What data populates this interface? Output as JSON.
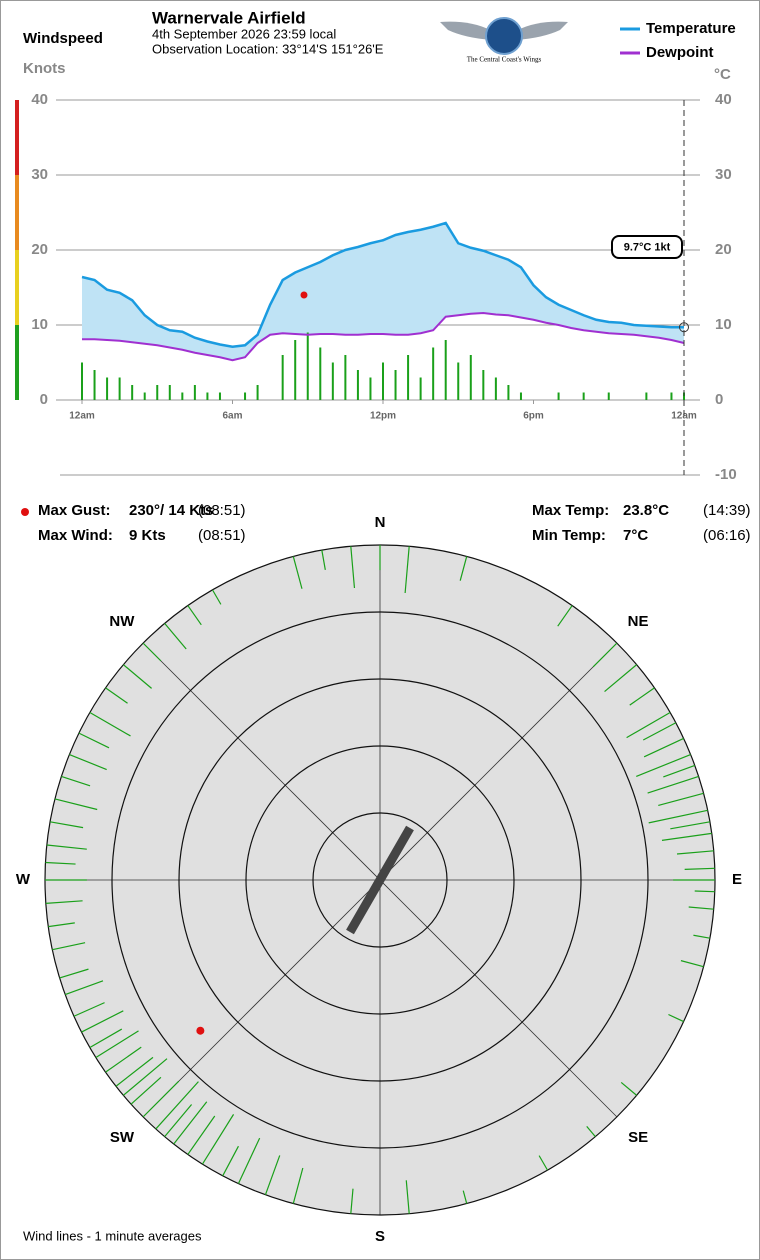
{
  "header": {
    "title": "Warnervale Airfield",
    "date": "4th September 2026  23:59 local",
    "location": "Observation Location: 33°14'S 151°26'E",
    "logo_caption": "The Central Coast's Wings"
  },
  "stats": [
    {
      "label": "Max Gust:",
      "value": "230°/ 14 Kts",
      "time": "(08:51)"
    },
    {
      "label": "Max Wind:",
      "value": "9 Kts",
      "time": "(08:51)"
    },
    {
      "label": "Max Temp:",
      "value": "23.8°C",
      "time": "(14:39)"
    },
    {
      "label": "Min Temp:",
      "value": "7°C",
      "time": "(06:16)"
    }
  ],
  "chart_data": [
    {
      "type": "line",
      "y_label": "Windspeed",
      "y_unit": "Knots",
      "y2_unit": "°C",
      "x": [
        0,
        0.5,
        1,
        1.5,
        2,
        2.5,
        3,
        3.5,
        4,
        4.5,
        5,
        5.5,
        6,
        6.5,
        7,
        7.5,
        8,
        8.5,
        9,
        9.5,
        10,
        10.5,
        11,
        11.5,
        12,
        12.5,
        13,
        13.5,
        14,
        14.5,
        15,
        15.5,
        16,
        16.5,
        17,
        17.5,
        18,
        18.5,
        19,
        19.5,
        20,
        20.5,
        21,
        21.5,
        22,
        22.5,
        23,
        23.5,
        24
      ],
      "xlim": [
        0,
        24
      ],
      "xticks": [
        {
          "value": 0,
          "label": "12am"
        },
        {
          "value": 6,
          "label": "6am"
        },
        {
          "value": 12,
          "label": "12pm"
        },
        {
          "value": 18,
          "label": "6pm"
        },
        {
          "value": 24,
          "label": "12am"
        }
      ],
      "ylim": [
        0,
        40
      ],
      "yticks": [
        0,
        10,
        20,
        30,
        40
      ],
      "y2lim": [
        -10,
        40
      ],
      "y2ticks": [
        -10,
        0,
        10,
        20,
        30,
        40
      ],
      "grid": true,
      "fill_color": "#bfe3f5",
      "series": [
        {
          "name": "Temperature",
          "color": "#1a9be0",
          "axis": "y2",
          "values": [
            16.4,
            16.0,
            14.7,
            14.3,
            13.3,
            11.3,
            10.0,
            9.3,
            9.1,
            8.3,
            7.8,
            7.4,
            7.1,
            7.3,
            8.7,
            12.7,
            16.0,
            17.0,
            17.7,
            18.4,
            19.3,
            20.0,
            20.4,
            20.9,
            21.3,
            22.0,
            22.4,
            22.7,
            23.1,
            23.6,
            20.9,
            20.3,
            19.9,
            19.3,
            18.7,
            17.7,
            15.3,
            13.7,
            12.7,
            12.0,
            11.3,
            10.7,
            10.4,
            10.3,
            10.0,
            9.9,
            9.8,
            9.7,
            9.7
          ]
        },
        {
          "name": "Dewpoint",
          "color": "#a030d0",
          "axis": "y2",
          "values": [
            8.1,
            8.1,
            8.0,
            7.9,
            7.7,
            7.5,
            7.3,
            7.0,
            6.7,
            6.3,
            6.0,
            5.7,
            5.3,
            5.7,
            7.6,
            8.7,
            8.9,
            8.8,
            8.7,
            8.8,
            8.8,
            8.7,
            8.7,
            8.8,
            8.8,
            8.7,
            8.7,
            8.9,
            9.3,
            11.1,
            11.3,
            11.5,
            11.6,
            11.4,
            11.3,
            11.0,
            10.7,
            10.3,
            10.0,
            9.6,
            9.3,
            9.1,
            8.9,
            8.8,
            8.7,
            8.5,
            8.3,
            8.0,
            7.6
          ]
        },
        {
          "type": "bar",
          "color": "#1aa01a",
          "axis": "y",
          "values": [
            5,
            4,
            3,
            3,
            2,
            1,
            2,
            2,
            1,
            2,
            1,
            1,
            0,
            1,
            2,
            0,
            6,
            8,
            9,
            7,
            5,
            6,
            4,
            3,
            5,
            4,
            6,
            3,
            7,
            8,
            5,
            6,
            4,
            3,
            2,
            1,
            0,
            0,
            1,
            0,
            1,
            0,
            1,
            0,
            0,
            1,
            0,
            1,
            1
          ]
        }
      ],
      "gust": {
        "x": 8.85,
        "value": 14,
        "color": "#e01010"
      },
      "current_label": "9.7°C  1kt"
    },
    {
      "type": "polar",
      "rlim": [
        0,
        20
      ],
      "rticks": [
        4,
        8,
        12,
        16,
        20
      ],
      "direction_labels": [
        "N",
        "NE",
        "E",
        "SE",
        "S",
        "SW",
        "W",
        "NW"
      ],
      "color": "#1aa01a",
      "directions": [
        330,
        345,
        350,
        355,
        0,
        5,
        15,
        35,
        45,
        50,
        55,
        60,
        62,
        65,
        68,
        70,
        72,
        75,
        78,
        80,
        82,
        85,
        88,
        90,
        92,
        95,
        100,
        105,
        115,
        130,
        140,
        150,
        165,
        175,
        185,
        195,
        200,
        205,
        208,
        212,
        215,
        218,
        220,
        222,
        225,
        228,
        230,
        232,
        235,
        238,
        240,
        243,
        246,
        250,
        253,
        258,
        262,
        266,
        270,
        273,
        276,
        280,
        284,
        288,
        292,
        296,
        300,
        305,
        310,
        315,
        320,
        325
      ],
      "values": [
        1.0,
        2.0,
        1.2,
        2.5,
        1.5,
        2.8,
        1.5,
        1.5,
        2.0,
        2.5,
        1.8,
        3.0,
        2.2,
        2.6,
        3.5,
        2.0,
        3.2,
        2.8,
        3.6,
        2.4,
        3.0,
        2.2,
        1.8,
        2.5,
        1.2,
        1.5,
        1.0,
        1.4,
        1.0,
        1.2,
        0.8,
        1.0,
        0.8,
        2.0,
        1.5,
        2.2,
        2.5,
        3.0,
        2.0,
        3.5,
        2.8,
        3.2,
        2.5,
        3.8,
        3.0,
        2.4,
        3.4,
        2.8,
        2.6,
        3.0,
        2.2,
        2.8,
        2.0,
        2.4,
        1.8,
        2.0,
        1.6,
        2.2,
        2.5,
        1.8,
        2.4,
        2.0,
        2.6,
        1.8,
        2.4,
        2.0,
        2.8,
        1.6,
        2.2,
        1.5,
        2.0,
        1.4
      ],
      "current_direction": 30,
      "gust": {
        "direction": 230,
        "speed": 14,
        "color": "#e01010"
      },
      "note": "Wind lines - 1 minute averages"
    }
  ]
}
